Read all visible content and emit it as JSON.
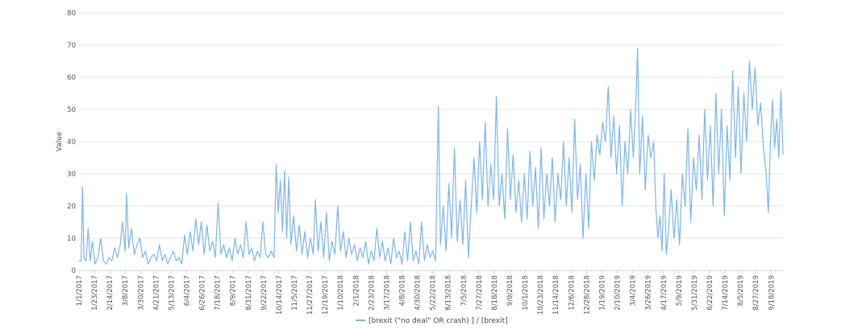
{
  "chart_data": {
    "type": "line",
    "title": "",
    "xlabel": "",
    "ylabel": "Value",
    "ylim": [
      0,
      80
    ],
    "y_ticks": [
      0,
      10,
      20,
      30,
      40,
      50,
      60,
      70,
      80
    ],
    "grid": true,
    "legend_position": "bottom-center",
    "x_tick_labels": [
      "1/1/2017",
      "1/23/2017",
      "2/14/2017",
      "3/8/2017",
      "3/30/2017",
      "4/21/2017",
      "5/13/2017",
      "6/4/2017",
      "6/26/2017",
      "7/18/2017",
      "8/9/2017",
      "8/31/2017",
      "9/22/2017",
      "10/14/2017",
      "11/5/2017",
      "11/27/2017",
      "12/19/2017",
      "1/10/2018",
      "2/1/2018",
      "2/23/2018",
      "3/17/2018",
      "4/8/2018",
      "4/30/2018",
      "5/22/2018",
      "6/13/2018",
      "7/5/2018",
      "7/27/2018",
      "8/18/2018",
      "9/9/2018",
      "10/1/2018",
      "10/23/2018",
      "11/14/2018",
      "12/6/2018",
      "12/28/2018",
      "1/19/2019",
      "2/10/2019",
      "3/4/2019",
      "3/26/2019",
      "4/17/2019",
      "5/9/2019",
      "5/31/2019",
      "6/22/2019",
      "7/14/2019",
      "8/5/2019",
      "8/27/2019",
      "9/18/2019"
    ],
    "series": [
      {
        "name": "[brexit (\"no deal\" OR crash) ] / [brexit]",
        "color": "#7cb5ec",
        "start_date": "2017-01-01",
        "end_date": "2019-10-05",
        "points": [
          [
            "2017-01-01",
            3
          ],
          [
            "2017-01-04",
            3
          ],
          [
            "2017-01-06",
            26
          ],
          [
            "2017-01-08",
            4
          ],
          [
            "2017-01-11",
            3
          ],
          [
            "2017-01-14",
            13
          ],
          [
            "2017-01-17",
            3
          ],
          [
            "2017-01-20",
            9
          ],
          [
            "2017-01-24",
            2
          ],
          [
            "2017-01-28",
            4
          ],
          [
            "2017-02-01",
            10
          ],
          [
            "2017-02-05",
            3
          ],
          [
            "2017-02-09",
            2
          ],
          [
            "2017-02-13",
            4
          ],
          [
            "2017-02-17",
            3
          ],
          [
            "2017-02-21",
            7
          ],
          [
            "2017-02-25",
            4
          ],
          [
            "2017-03-01",
            8
          ],
          [
            "2017-03-04",
            15
          ],
          [
            "2017-03-08",
            6
          ],
          [
            "2017-03-10",
            24
          ],
          [
            "2017-03-13",
            7
          ],
          [
            "2017-03-17",
            13
          ],
          [
            "2017-03-21",
            5
          ],
          [
            "2017-03-25",
            8
          ],
          [
            "2017-03-29",
            10
          ],
          [
            "2017-04-02",
            4
          ],
          [
            "2017-04-06",
            6
          ],
          [
            "2017-04-10",
            2
          ],
          [
            "2017-04-14",
            4
          ],
          [
            "2017-04-18",
            5
          ],
          [
            "2017-04-22",
            3
          ],
          [
            "2017-04-26",
            8
          ],
          [
            "2017-04-30",
            3
          ],
          [
            "2017-05-04",
            5
          ],
          [
            "2017-05-08",
            2
          ],
          [
            "2017-05-12",
            4
          ],
          [
            "2017-05-16",
            6
          ],
          [
            "2017-05-20",
            3
          ],
          [
            "2017-05-24",
            4
          ],
          [
            "2017-05-28",
            2
          ],
          [
            "2017-06-01",
            11
          ],
          [
            "2017-06-05",
            5
          ],
          [
            "2017-06-09",
            12
          ],
          [
            "2017-06-13",
            6
          ],
          [
            "2017-06-17",
            16
          ],
          [
            "2017-06-21",
            8
          ],
          [
            "2017-06-25",
            15
          ],
          [
            "2017-06-29",
            5
          ],
          [
            "2017-07-03",
            14
          ],
          [
            "2017-07-07",
            6
          ],
          [
            "2017-07-11",
            9
          ],
          [
            "2017-07-15",
            4
          ],
          [
            "2017-07-19",
            21
          ],
          [
            "2017-07-23",
            5
          ],
          [
            "2017-07-27",
            8
          ],
          [
            "2017-07-31",
            4
          ],
          [
            "2017-08-04",
            7
          ],
          [
            "2017-08-08",
            3
          ],
          [
            "2017-08-12",
            10
          ],
          [
            "2017-08-16",
            5
          ],
          [
            "2017-08-20",
            8
          ],
          [
            "2017-08-24",
            4
          ],
          [
            "2017-08-28",
            15
          ],
          [
            "2017-09-01",
            5
          ],
          [
            "2017-09-05",
            7
          ],
          [
            "2017-09-09",
            3
          ],
          [
            "2017-09-13",
            6
          ],
          [
            "2017-09-17",
            4
          ],
          [
            "2017-09-21",
            15
          ],
          [
            "2017-09-25",
            5
          ],
          [
            "2017-09-29",
            4
          ],
          [
            "2017-10-03",
            6
          ],
          [
            "2017-10-07",
            4
          ],
          [
            "2017-10-10",
            33
          ],
          [
            "2017-10-13",
            18
          ],
          [
            "2017-10-16",
            28
          ],
          [
            "2017-10-19",
            12
          ],
          [
            "2017-10-22",
            31
          ],
          [
            "2017-10-25",
            10
          ],
          [
            "2017-10-28",
            29
          ],
          [
            "2017-10-31",
            8
          ],
          [
            "2017-11-04",
            17
          ],
          [
            "2017-11-08",
            6
          ],
          [
            "2017-11-12",
            14
          ],
          [
            "2017-11-16",
            5
          ],
          [
            "2017-11-20",
            12
          ],
          [
            "2017-11-24",
            4
          ],
          [
            "2017-11-28",
            10
          ],
          [
            "2017-12-02",
            5
          ],
          [
            "2017-12-05",
            22
          ],
          [
            "2017-12-09",
            6
          ],
          [
            "2017-12-13",
            15
          ],
          [
            "2017-12-17",
            4
          ],
          [
            "2017-12-21",
            18
          ],
          [
            "2017-12-25",
            3
          ],
          [
            "2017-12-29",
            9
          ],
          [
            "2018-01-02",
            5
          ],
          [
            "2018-01-06",
            20
          ],
          [
            "2018-01-10",
            6
          ],
          [
            "2018-01-14",
            12
          ],
          [
            "2018-01-18",
            4
          ],
          [
            "2018-01-22",
            10
          ],
          [
            "2018-01-26",
            5
          ],
          [
            "2018-01-30",
            8
          ],
          [
            "2018-02-03",
            3
          ],
          [
            "2018-02-07",
            7
          ],
          [
            "2018-02-11",
            4
          ],
          [
            "2018-02-15",
            9
          ],
          [
            "2018-02-19",
            2
          ],
          [
            "2018-02-23",
            6
          ],
          [
            "2018-02-27",
            3
          ],
          [
            "2018-03-03",
            13
          ],
          [
            "2018-03-07",
            4
          ],
          [
            "2018-03-11",
            9
          ],
          [
            "2018-03-15",
            3
          ],
          [
            "2018-03-19",
            7
          ],
          [
            "2018-03-23",
            2
          ],
          [
            "2018-03-27",
            10
          ],
          [
            "2018-03-31",
            4
          ],
          [
            "2018-04-04",
            6
          ],
          [
            "2018-04-08",
            2
          ],
          [
            "2018-04-12",
            12
          ],
          [
            "2018-04-16",
            3
          ],
          [
            "2018-04-20",
            15
          ],
          [
            "2018-04-24",
            3
          ],
          [
            "2018-04-28",
            6
          ],
          [
            "2018-05-02",
            2
          ],
          [
            "2018-05-06",
            15
          ],
          [
            "2018-05-10",
            3
          ],
          [
            "2018-05-14",
            8
          ],
          [
            "2018-05-18",
            4
          ],
          [
            "2018-05-22",
            6
          ],
          [
            "2018-05-26",
            3
          ],
          [
            "2018-05-30",
            51
          ],
          [
            "2018-06-02",
            8
          ],
          [
            "2018-06-06",
            20
          ],
          [
            "2018-06-10",
            6
          ],
          [
            "2018-06-14",
            27
          ],
          [
            "2018-06-18",
            10
          ],
          [
            "2018-06-22",
            38
          ],
          [
            "2018-06-26",
            9
          ],
          [
            "2018-06-30",
            22
          ],
          [
            "2018-07-04",
            8
          ],
          [
            "2018-07-08",
            28
          ],
          [
            "2018-07-12",
            4
          ],
          [
            "2018-07-16",
            20
          ],
          [
            "2018-07-20",
            35
          ],
          [
            "2018-07-24",
            18
          ],
          [
            "2018-07-28",
            40
          ],
          [
            "2018-08-01",
            22
          ],
          [
            "2018-08-05",
            46
          ],
          [
            "2018-08-09",
            20
          ],
          [
            "2018-08-13",
            33
          ],
          [
            "2018-08-17",
            22
          ],
          [
            "2018-08-21",
            54
          ],
          [
            "2018-08-25",
            20
          ],
          [
            "2018-08-29",
            30
          ],
          [
            "2018-09-02",
            16
          ],
          [
            "2018-09-06",
            44
          ],
          [
            "2018-09-10",
            22
          ],
          [
            "2018-09-14",
            36
          ],
          [
            "2018-09-18",
            18
          ],
          [
            "2018-09-22",
            28
          ],
          [
            "2018-09-26",
            15
          ],
          [
            "2018-09-30",
            30
          ],
          [
            "2018-10-04",
            16
          ],
          [
            "2018-10-08",
            37
          ],
          [
            "2018-10-12",
            20
          ],
          [
            "2018-10-16",
            32
          ],
          [
            "2018-10-20",
            13
          ],
          [
            "2018-10-24",
            38
          ],
          [
            "2018-10-28",
            16
          ],
          [
            "2018-11-01",
            30
          ],
          [
            "2018-11-05",
            20
          ],
          [
            "2018-11-09",
            35
          ],
          [
            "2018-11-13",
            15
          ],
          [
            "2018-11-17",
            30
          ],
          [
            "2018-11-21",
            22
          ],
          [
            "2018-11-25",
            40
          ],
          [
            "2018-11-29",
            20
          ],
          [
            "2018-12-03",
            35
          ],
          [
            "2018-12-07",
            18
          ],
          [
            "2018-12-11",
            47
          ],
          [
            "2018-12-15",
            22
          ],
          [
            "2018-12-19",
            33
          ],
          [
            "2018-12-23",
            10
          ],
          [
            "2018-12-27",
            30
          ],
          [
            "2018-12-31",
            13
          ],
          [
            "2019-01-04",
            40
          ],
          [
            "2019-01-08",
            28
          ],
          [
            "2019-01-12",
            42
          ],
          [
            "2019-01-16",
            36
          ],
          [
            "2019-01-20",
            46
          ],
          [
            "2019-01-24",
            40
          ],
          [
            "2019-01-28",
            57
          ],
          [
            "2019-02-01",
            35
          ],
          [
            "2019-02-05",
            48
          ],
          [
            "2019-02-09",
            30
          ],
          [
            "2019-02-13",
            45
          ],
          [
            "2019-02-17",
            20
          ],
          [
            "2019-02-21",
            40
          ],
          [
            "2019-02-25",
            30
          ],
          [
            "2019-03-01",
            50
          ],
          [
            "2019-03-05",
            35
          ],
          [
            "2019-03-09",
            55
          ],
          [
            "2019-03-11",
            69
          ],
          [
            "2019-03-14",
            30
          ],
          [
            "2019-03-18",
            48
          ],
          [
            "2019-03-22",
            25
          ],
          [
            "2019-03-26",
            42
          ],
          [
            "2019-03-30",
            35
          ],
          [
            "2019-04-03",
            40
          ],
          [
            "2019-04-06",
            20
          ],
          [
            "2019-04-09",
            10
          ],
          [
            "2019-04-12",
            17
          ],
          [
            "2019-04-15",
            6
          ],
          [
            "2019-04-18",
            30
          ],
          [
            "2019-04-21",
            5
          ],
          [
            "2019-04-24",
            12
          ],
          [
            "2019-04-28",
            25
          ],
          [
            "2019-05-02",
            10
          ],
          [
            "2019-05-06",
            22
          ],
          [
            "2019-05-10",
            8
          ],
          [
            "2019-05-14",
            30
          ],
          [
            "2019-05-18",
            20
          ],
          [
            "2019-05-22",
            44
          ],
          [
            "2019-05-26",
            15
          ],
          [
            "2019-05-30",
            35
          ],
          [
            "2019-06-03",
            25
          ],
          [
            "2019-06-07",
            42
          ],
          [
            "2019-06-11",
            22
          ],
          [
            "2019-06-15",
            50
          ],
          [
            "2019-06-19",
            28
          ],
          [
            "2019-06-23",
            45
          ],
          [
            "2019-06-27",
            20
          ],
          [
            "2019-07-01",
            55
          ],
          [
            "2019-07-05",
            30
          ],
          [
            "2019-07-09",
            50
          ],
          [
            "2019-07-13",
            17
          ],
          [
            "2019-07-17",
            45
          ],
          [
            "2019-07-21",
            28
          ],
          [
            "2019-07-25",
            62
          ],
          [
            "2019-07-29",
            35
          ],
          [
            "2019-08-02",
            57
          ],
          [
            "2019-08-06",
            30
          ],
          [
            "2019-08-10",
            55
          ],
          [
            "2019-08-14",
            40
          ],
          [
            "2019-08-18",
            65
          ],
          [
            "2019-08-22",
            50
          ],
          [
            "2019-08-26",
            63
          ],
          [
            "2019-08-30",
            45
          ],
          [
            "2019-09-03",
            52
          ],
          [
            "2019-09-07",
            38
          ],
          [
            "2019-09-11",
            30
          ],
          [
            "2019-09-14",
            18
          ],
          [
            "2019-09-17",
            40
          ],
          [
            "2019-09-20",
            53
          ],
          [
            "2019-09-23",
            38
          ],
          [
            "2019-09-26",
            47
          ],
          [
            "2019-09-29",
            35
          ],
          [
            "2019-10-02",
            56
          ],
          [
            "2019-10-05",
            36
          ]
        ]
      }
    ]
  }
}
